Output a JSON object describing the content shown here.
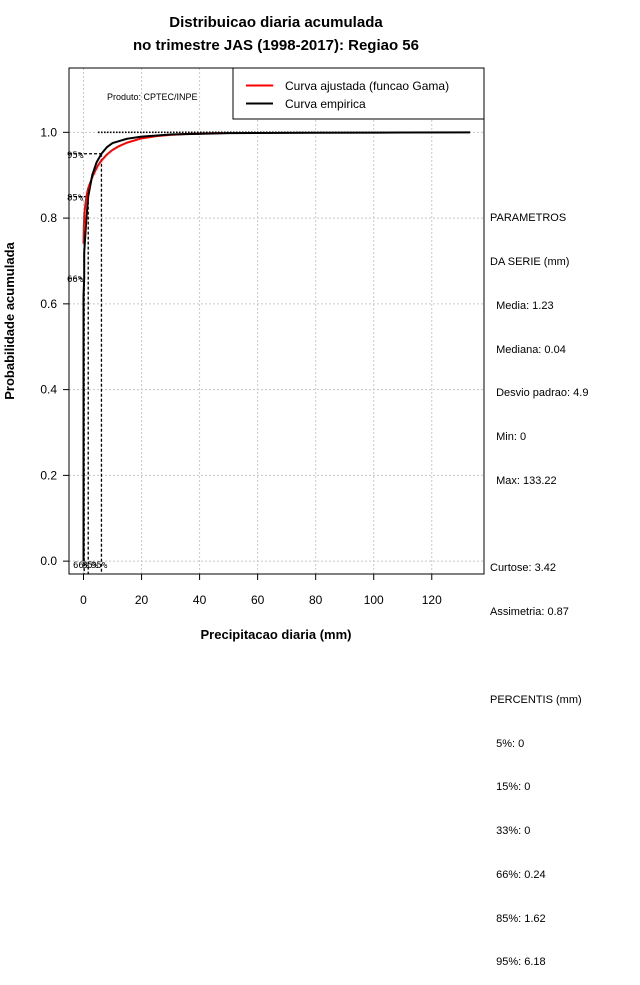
{
  "title_line1": "Distribuicao diaria acumulada",
  "title_line2": "no trimestre JAS (1998-2017): Regiao 56",
  "product_label": "Produto: CPTEC/INPE",
  "stats": {
    "header1": "PARAMETROS",
    "header2": "DA SERIE (mm)",
    "media": "  Media: 1.23",
    "mediana": "  Mediana: 0.04",
    "desvio": "  Desvio padrao: 4.9",
    "min": "  Min: 0",
    "max": "  Max: 133.22",
    "curtose": "Curtose: 3.42",
    "assimetria": "Assimetria: 0.87",
    "percentis_header": "PERCENTIS (mm)",
    "p5": "  5%: 0",
    "p15": "  15%: 0",
    "p33": "  33%: 0",
    "p66": "  66%: 0.24",
    "p85": "  85%: 1.62",
    "p95": "  95%: 6.18"
  },
  "chart_data": {
    "type": "line",
    "xlabel": "Precipitacao diaria (mm)",
    "ylabel": "Probabilidade acumulada",
    "xlim": [
      -5,
      138
    ],
    "ylim": [
      -0.03,
      1.15
    ],
    "xticks": [
      0,
      20,
      40,
      60,
      80,
      100,
      120
    ],
    "yticks": [
      0.0,
      0.2,
      0.4,
      0.6,
      0.8,
      1.0
    ],
    "xtick_labels": [
      "0",
      "20",
      "40",
      "60",
      "80",
      "100",
      "120"
    ],
    "ytick_labels": [
      "0.0",
      "0.2",
      "0.4",
      "0.6",
      "0.8",
      "1.0"
    ],
    "grid": true,
    "legend_position": "top-right",
    "series": [
      {
        "name": "Curva ajustada (funcao Gama)",
        "color": "#ff0000",
        "x": [
          0,
          0.1,
          0.3,
          0.6,
          1,
          1.5,
          2,
          3,
          4,
          5,
          6,
          8,
          10,
          12,
          15,
          20,
          25,
          30,
          35,
          40,
          45,
          48
        ],
        "y": [
          0.74,
          0.78,
          0.81,
          0.83,
          0.85,
          0.867,
          0.877,
          0.895,
          0.91,
          0.923,
          0.933,
          0.948,
          0.959,
          0.967,
          0.976,
          0.986,
          0.991,
          0.994,
          0.996,
          0.997,
          0.998,
          0.998
        ]
      },
      {
        "name": "Curva empirica",
        "color": "#000000",
        "x": [
          0,
          0,
          0.24,
          0.24,
          1.0,
          1.62,
          3,
          4.5,
          6.18,
          8,
          10,
          15,
          20,
          30,
          50,
          80,
          110,
          133.22
        ],
        "y": [
          0.0,
          0.62,
          0.66,
          0.72,
          0.8,
          0.85,
          0.9,
          0.93,
          0.95,
          0.965,
          0.975,
          0.985,
          0.99,
          0.995,
          0.998,
          0.999,
          0.9995,
          1.0
        ]
      }
    ],
    "percentiles": [
      {
        "label": "5%",
        "p": 0.05,
        "value": 0
      },
      {
        "label": "15%",
        "p": 0.15,
        "value": 0
      },
      {
        "label": "33%",
        "p": 0.33,
        "value": 0
      },
      {
        "label": "66%",
        "p": 0.66,
        "value": 0.24
      },
      {
        "label": "85%",
        "p": 0.85,
        "value": 1.62
      },
      {
        "label": "95%",
        "p": 0.95,
        "value": 6.18
      }
    ],
    "percentile_markers": [
      {
        "label": "66%",
        "p": 0.66,
        "value": 0.24
      },
      {
        "label": "85%",
        "p": 0.85,
        "value": 1.62
      },
      {
        "label": "95%",
        "p": 0.95,
        "value": 6.18
      }
    ],
    "bottom_labels": [
      "66%",
      "85%",
      "95%"
    ]
  }
}
